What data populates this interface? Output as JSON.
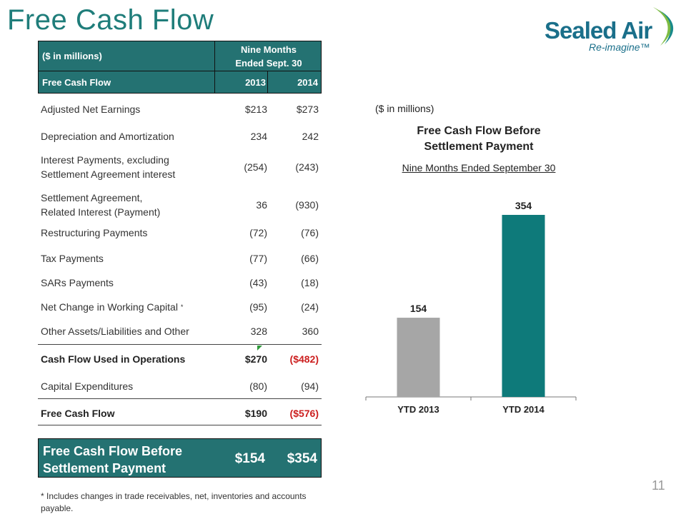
{
  "slide": {
    "title": "Free Cash Flow",
    "page_number": "11",
    "logo": {
      "brand": "Sealed Air",
      "tagline": "Re-imagine™"
    }
  },
  "table": {
    "unit_caption": "($ in millions)",
    "period_line1": "Nine Months",
    "period_line2": "Ended Sept. 30",
    "header_label": "Free Cash Flow",
    "col_2013": "2013",
    "col_2014": "2014",
    "rows": [
      {
        "label": "Adjusted Net Earnings",
        "v2013": "$213",
        "v2014": "$273"
      },
      {
        "label": "Depreciation and Amortization",
        "v2013": "234",
        "v2014": "242"
      },
      {
        "label_line1": "Interest Payments, excluding",
        "label_line2": "Settlement Agreement interest",
        "v2013": "(254)",
        "v2014": "(243)"
      },
      {
        "label_line1": "Settlement Agreement,",
        "label_line2": "Related Interest (Payment)",
        "v2013": "36",
        "v2014": "(930)"
      },
      {
        "label": "Restructuring Payments",
        "v2013": "(72)",
        "v2014": "(76)"
      },
      {
        "label": "Tax Payments",
        "v2013": "(77)",
        "v2014": "(66)"
      },
      {
        "label": "SARs Payments",
        "v2013": "(43)",
        "v2014": "(18)"
      },
      {
        "label": "Net Change in Working Capital",
        "footnote_mark": "*",
        "v2013": "(95)",
        "v2014": "(24)"
      },
      {
        "label": "Other Assets/Liabilities and Other",
        "v2013": "328",
        "v2014": "360"
      },
      {
        "label": "Cash Flow Used in Operations",
        "v2013": "$270",
        "v2014": "($482)"
      },
      {
        "label": "Capital Expenditures",
        "v2013": "(80)",
        "v2014": "(94)"
      },
      {
        "label": "Free Cash Flow",
        "v2013": "$190",
        "v2014": "($576)"
      }
    ],
    "summary": {
      "label_line1": "Free Cash Flow Before",
      "label_line2": "Settlement Payment",
      "v2013": "$154",
      "v2014": "$354"
    },
    "footnote": "* Includes changes in trade receivables, net, inventories and accounts payable."
  },
  "colors": {
    "teal": "#247272",
    "grey_bar": "#a6a6a6",
    "teal_bar": "#0e7a7a",
    "negative": "#cc1f1f"
  },
  "chart_data": {
    "type": "bar",
    "units_caption": "($ in millions)",
    "title_line1": "Free Cash Flow Before",
    "title_line2": "Settlement Payment",
    "subtitle": "Nine Months Ended September 30",
    "categories": [
      "YTD 2013",
      "YTD 2014"
    ],
    "values": [
      154,
      354
    ],
    "data_labels": [
      "154",
      "354"
    ],
    "bar_colors": [
      "#a6a6a6",
      "#0e7a7a"
    ],
    "ylim": [
      0,
      354
    ],
    "grid": false,
    "legend": "none"
  }
}
